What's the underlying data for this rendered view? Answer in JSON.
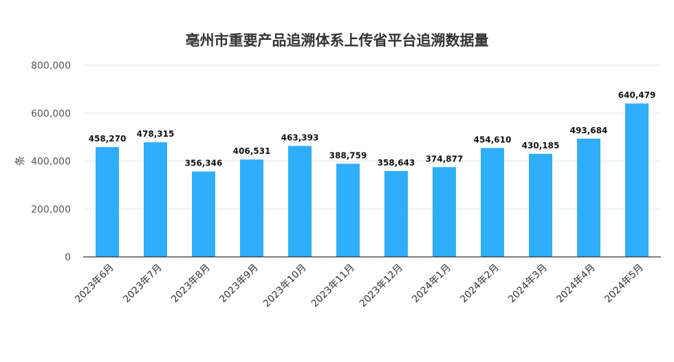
{
  "chart_data": {
    "type": "bar",
    "title": "亳州市重要产品追溯体系上传省平台追溯数据量",
    "ylabel": "条",
    "xlabel": "",
    "ylim": [
      0,
      800000
    ],
    "yticks": [
      "0",
      "200,000",
      "400,000",
      "600,000",
      "800,000"
    ],
    "ytick_values": [
      0,
      200000,
      400000,
      600000,
      800000
    ],
    "categories": [
      "2023年6月",
      "2023年7月",
      "2023年8月",
      "2023年9月",
      "2023年10月",
      "2023年11月",
      "2023年12月",
      "2024年1月",
      "2024年2月",
      "2024年3月",
      "2024年4月",
      "2024年5月"
    ],
    "values": [
      458270,
      478315,
      356346,
      406531,
      463393,
      388759,
      358643,
      374877,
      454610,
      430185,
      493684,
      640479
    ],
    "value_labels": [
      "458,270",
      "478,315",
      "356,346",
      "406,531",
      "463,393",
      "388,759",
      "358,643",
      "374,877",
      "454,610",
      "430,185",
      "493,684",
      "640,479"
    ],
    "grid": true,
    "legend": "none",
    "bar_color": "#2eaefb"
  }
}
